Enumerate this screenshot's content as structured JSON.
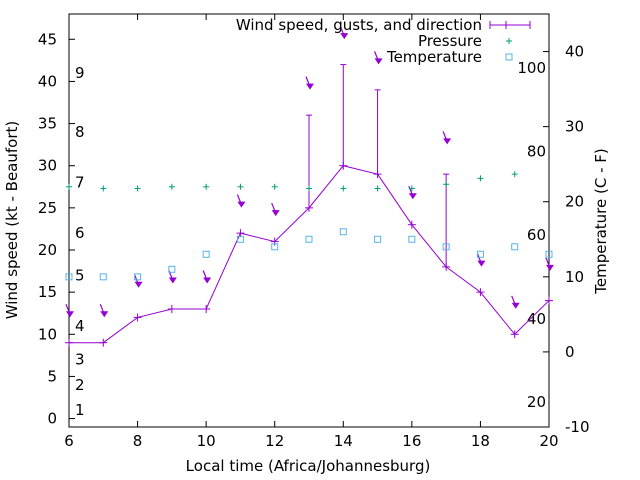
{
  "chart_data": {
    "type": "line",
    "title": "",
    "xlabel": "Local time (Africa/Johannesburg)",
    "ylabel_left": "Wind speed (kt - Beaufort)",
    "ylabel_right": "Temperature (C - F)",
    "xlim": [
      6,
      20
    ],
    "ylim_left": [
      -1,
      48
    ],
    "ylim_right": [
      -10,
      45
    ],
    "x_ticks": [
      6,
      8,
      10,
      12,
      14,
      16,
      18,
      20
    ],
    "y_ticks_left": [
      0,
      5,
      10,
      15,
      20,
      25,
      30,
      35,
      40,
      45
    ],
    "y_ticks_right": [
      -10,
      0,
      10,
      20,
      30,
      40
    ],
    "beaufort_labels": [
      {
        "label": "1",
        "kt": 1
      },
      {
        "label": "2",
        "kt": 4
      },
      {
        "label": "3",
        "kt": 7
      },
      {
        "label": "4",
        "kt": 11
      },
      {
        "label": "5",
        "kt": 17
      },
      {
        "label": "6",
        "kt": 22
      },
      {
        "label": "7",
        "kt": 28
      },
      {
        "label": "8",
        "kt": 34
      },
      {
        "label": "9",
        "kt": 41
      }
    ],
    "fahrenheit_labels": [
      {
        "label": "20",
        "temp_c": -6.7
      },
      {
        "label": "40",
        "temp_c": 4.4
      },
      {
        "label": "60",
        "temp_c": 15.6
      },
      {
        "label": "80",
        "temp_c": 26.7
      },
      {
        "label": "100",
        "temp_c": 37.8
      }
    ],
    "grid": false,
    "legend_position": "top-right",
    "series": [
      {
        "name": "Wind speed, gusts, and direction",
        "color": "#9400d3",
        "x": [
          6,
          7,
          8,
          9,
          10,
          11,
          12,
          13,
          14,
          15,
          16,
          17,
          18,
          19,
          20
        ],
        "speed": [
          9,
          9,
          12,
          13,
          13,
          22,
          21,
          25,
          30,
          29,
          23,
          18,
          15,
          10,
          14
        ],
        "gust": [
          null,
          null,
          null,
          null,
          null,
          null,
          null,
          36,
          42,
          39,
          null,
          29,
          null,
          null,
          null
        ],
        "direction_arrow_kt": [
          12.5,
          12.5,
          16,
          16.5,
          16.5,
          25.5,
          24.5,
          39.5,
          45.5,
          42.5,
          26.5,
          33,
          18.5,
          13.5,
          18
        ]
      },
      {
        "name": "Pressure",
        "color": "#009e73",
        "x": [
          6,
          7,
          8,
          9,
          10,
          11,
          12,
          13,
          14,
          15,
          16,
          17,
          18,
          19
        ],
        "values": [
          27.5,
          27.3,
          27.3,
          27.5,
          27.5,
          27.5,
          27.5,
          27.3,
          27.3,
          27.3,
          27.3,
          27.8,
          28.5,
          29
        ]
      },
      {
        "name": "Temperature",
        "color": "#56b4e9",
        "x": [
          6,
          7,
          8,
          9,
          10,
          11,
          12,
          13,
          14,
          15,
          16,
          17,
          18,
          19,
          20
        ],
        "values": [
          10,
          10,
          10,
          11,
          13,
          15,
          14,
          15,
          16,
          15,
          15,
          14,
          13,
          14,
          13
        ]
      }
    ]
  }
}
